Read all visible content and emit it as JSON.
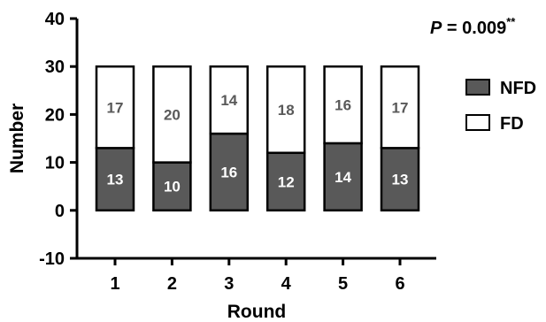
{
  "chart_data": {
    "type": "bar",
    "stacked": true,
    "xlabel": "Round",
    "ylabel": "Number",
    "categories": [
      "1",
      "2",
      "3",
      "4",
      "5",
      "6"
    ],
    "series": [
      {
        "name": "NFD",
        "values": [
          13,
          10,
          16,
          12,
          14,
          13
        ],
        "color": "#595959",
        "label_color": "#ffffff"
      },
      {
        "name": "FD",
        "values": [
          17,
          20,
          14,
          18,
          16,
          17
        ],
        "color": "#ffffff",
        "label_color": "#595959"
      }
    ],
    "ylim": [
      -10,
      40
    ],
    "yticks": [
      "-10",
      "0",
      "10",
      "20",
      "30",
      "40"
    ],
    "annotation": {
      "p_symbol": "P",
      "p_text": " = 0.009",
      "significance": "**"
    },
    "legend_position": "right",
    "grid": false
  }
}
